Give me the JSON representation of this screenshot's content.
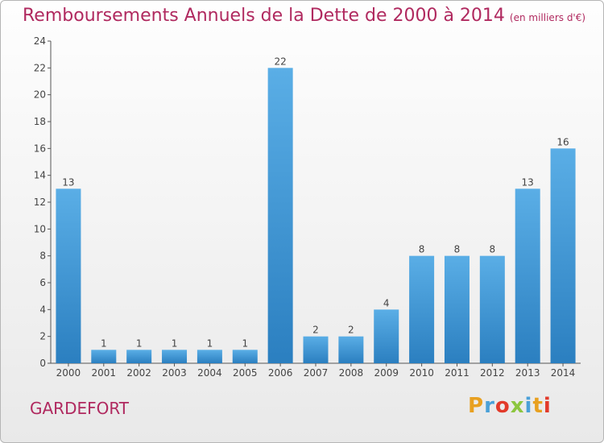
{
  "chart_data": {
    "type": "bar",
    "title": "Remboursements Annuels de la Dette de 2000 à 2014",
    "subtitle": "(en milliers d'€)",
    "categories": [
      "2000",
      "2001",
      "2002",
      "2003",
      "2004",
      "2005",
      "2006",
      "2007",
      "2008",
      "2009",
      "2010",
      "2011",
      "2012",
      "2013",
      "2014"
    ],
    "values": [
      13,
      1,
      1,
      1,
      1,
      1,
      22,
      2,
      2,
      4,
      8,
      8,
      8,
      13,
      16
    ],
    "ylim": [
      0,
      24
    ],
    "yticks": [
      0,
      2,
      4,
      6,
      8,
      10,
      12,
      14,
      16,
      18,
      20,
      22,
      24
    ],
    "grid": false,
    "bar_color_top": "#5aaee6",
    "bar_color_bottom": "#2b7fc0"
  },
  "footer": {
    "commune": "GARDEFORT",
    "logo": "Proxiti",
    "logo_colors": [
      "#e8a020",
      "#4aa0d8",
      "#e23a2a",
      "#8cc63f",
      "#4aa0d8",
      "#e8a020",
      "#e23a2a"
    ]
  }
}
